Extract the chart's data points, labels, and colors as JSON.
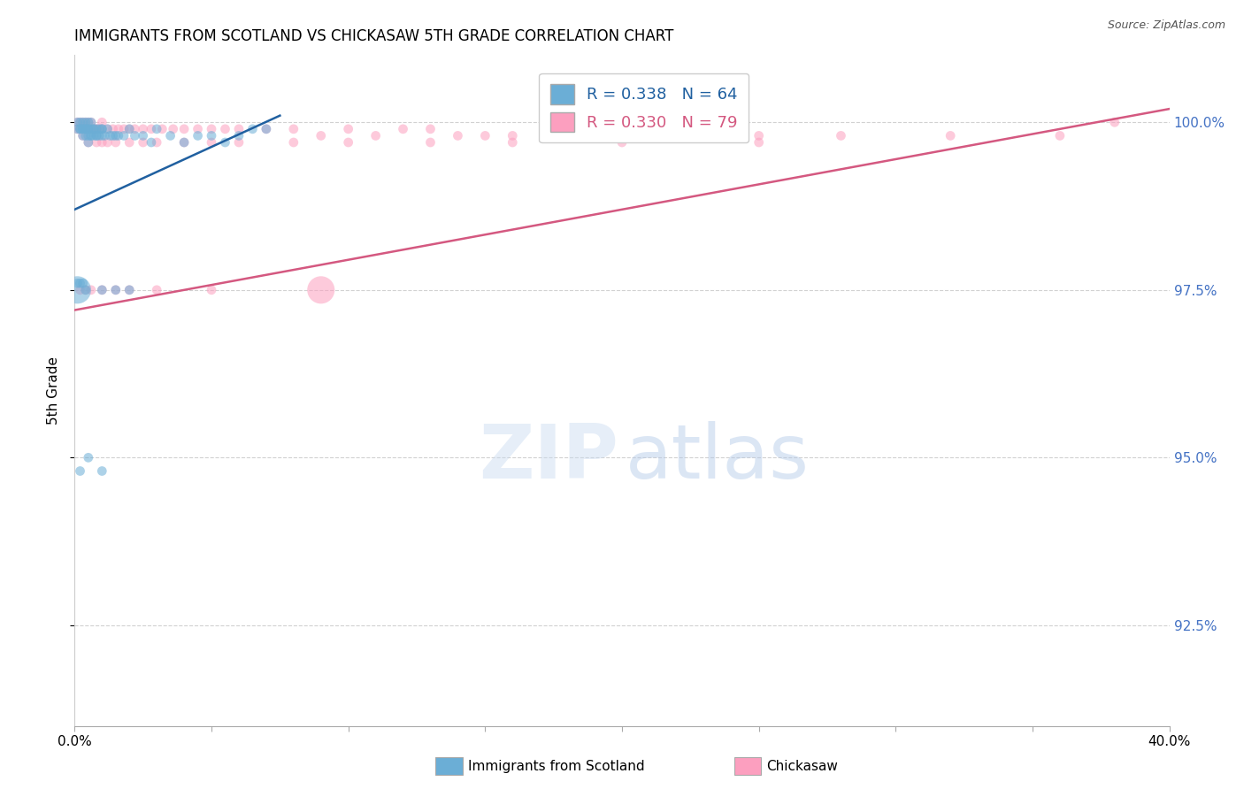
{
  "title": "IMMIGRANTS FROM SCOTLAND VS CHICKASAW 5TH GRADE CORRELATION CHART",
  "source": "Source: ZipAtlas.com",
  "ylabel": "5th Grade",
  "xlim": [
    0.0,
    0.4
  ],
  "ylim": [
    0.91,
    1.01
  ],
  "yticks": [
    0.925,
    0.95,
    0.975,
    1.0
  ],
  "ytick_labels": [
    "92.5%",
    "95.0%",
    "97.5%",
    "100.0%"
  ],
  "xtick_vals": [
    0.0,
    0.05,
    0.1,
    0.15,
    0.2,
    0.25,
    0.3,
    0.35,
    0.4
  ],
  "xtick_labels": [
    "0.0%",
    "",
    "",
    "",
    "",
    "",
    "",
    "",
    "40.0%"
  ],
  "blue_R": 0.338,
  "blue_N": 64,
  "pink_R": 0.33,
  "pink_N": 79,
  "blue_color": "#6baed6",
  "pink_color": "#fc9fbf",
  "blue_line_color": "#2060a0",
  "pink_line_color": "#d45880",
  "legend_label_blue": "Immigrants from Scotland",
  "legend_label_pink": "Chickasaw",
  "watermark_zip": "ZIP",
  "watermark_atlas": "atlas",
  "background_color": "#ffffff",
  "blue_line_x0": 0.0,
  "blue_line_y0": 0.987,
  "blue_line_x1": 0.075,
  "blue_line_y1": 1.001,
  "pink_line_x0": 0.0,
  "pink_line_y0": 0.972,
  "pink_line_x1": 0.4,
  "pink_line_y1": 1.002,
  "blue_scatter_x": [
    0.001,
    0.001,
    0.002,
    0.002,
    0.002,
    0.003,
    0.003,
    0.003,
    0.003,
    0.004,
    0.004,
    0.004,
    0.004,
    0.005,
    0.005,
    0.005,
    0.005,
    0.005,
    0.006,
    0.006,
    0.006,
    0.006,
    0.007,
    0.007,
    0.007,
    0.008,
    0.008,
    0.008,
    0.009,
    0.009,
    0.01,
    0.01,
    0.01,
    0.011,
    0.012,
    0.013,
    0.014,
    0.015,
    0.016,
    0.018,
    0.02,
    0.022,
    0.025,
    0.028,
    0.03,
    0.035,
    0.04,
    0.045,
    0.05,
    0.055,
    0.06,
    0.065,
    0.07,
    0.001,
    0.002,
    0.003,
    0.004,
    0.01,
    0.015,
    0.02,
    0.002,
    0.005,
    0.01,
    0.001
  ],
  "blue_scatter_y": [
    1.0,
    0.999,
    1.0,
    0.999,
    0.999,
    1.0,
    0.999,
    0.999,
    0.998,
    1.0,
    0.999,
    0.999,
    0.998,
    1.0,
    0.999,
    0.999,
    0.998,
    0.997,
    1.0,
    0.999,
    0.998,
    0.998,
    0.999,
    0.999,
    0.998,
    0.999,
    0.998,
    0.998,
    0.999,
    0.998,
    0.999,
    0.999,
    0.998,
    0.998,
    0.999,
    0.998,
    0.998,
    0.998,
    0.998,
    0.998,
    0.999,
    0.998,
    0.998,
    0.997,
    0.999,
    0.998,
    0.997,
    0.998,
    0.998,
    0.997,
    0.998,
    0.999,
    0.999,
    0.976,
    0.976,
    0.976,
    0.975,
    0.975,
    0.975,
    0.975,
    0.948,
    0.95,
    0.948,
    0.975
  ],
  "blue_scatter_s": [
    60,
    60,
    60,
    60,
    60,
    60,
    60,
    60,
    60,
    60,
    60,
    60,
    60,
    60,
    60,
    60,
    60,
    60,
    60,
    60,
    60,
    60,
    60,
    60,
    60,
    60,
    60,
    60,
    60,
    60,
    60,
    60,
    60,
    60,
    60,
    60,
    60,
    60,
    60,
    60,
    60,
    60,
    60,
    60,
    60,
    60,
    60,
    60,
    60,
    60,
    60,
    60,
    60,
    60,
    60,
    60,
    60,
    60,
    60,
    60,
    60,
    60,
    60,
    500
  ],
  "pink_scatter_x": [
    0.001,
    0.001,
    0.002,
    0.002,
    0.003,
    0.003,
    0.004,
    0.004,
    0.005,
    0.005,
    0.006,
    0.006,
    0.007,
    0.007,
    0.008,
    0.008,
    0.009,
    0.01,
    0.01,
    0.012,
    0.014,
    0.016,
    0.018,
    0.02,
    0.022,
    0.025,
    0.028,
    0.032,
    0.036,
    0.04,
    0.045,
    0.05,
    0.055,
    0.06,
    0.07,
    0.08,
    0.09,
    0.1,
    0.11,
    0.12,
    0.13,
    0.14,
    0.15,
    0.16,
    0.18,
    0.2,
    0.22,
    0.25,
    0.28,
    0.32,
    0.36,
    0.38,
    0.003,
    0.005,
    0.008,
    0.01,
    0.012,
    0.015,
    0.02,
    0.025,
    0.03,
    0.04,
    0.05,
    0.06,
    0.08,
    0.1,
    0.13,
    0.16,
    0.2,
    0.25,
    0.002,
    0.004,
    0.006,
    0.01,
    0.015,
    0.02,
    0.03,
    0.05,
    0.09
  ],
  "pink_scatter_y": [
    1.0,
    0.999,
    1.0,
    0.999,
    1.0,
    0.999,
    1.0,
    0.999,
    1.0,
    0.999,
    1.0,
    0.999,
    0.999,
    0.999,
    0.999,
    0.999,
    0.999,
    1.0,
    0.999,
    0.999,
    0.999,
    0.999,
    0.999,
    0.999,
    0.999,
    0.999,
    0.999,
    0.999,
    0.999,
    0.999,
    0.999,
    0.999,
    0.999,
    0.999,
    0.999,
    0.999,
    0.998,
    0.999,
    0.998,
    0.999,
    0.999,
    0.998,
    0.998,
    0.998,
    0.998,
    0.998,
    0.998,
    0.998,
    0.998,
    0.998,
    0.998,
    1.0,
    0.998,
    0.997,
    0.997,
    0.997,
    0.997,
    0.997,
    0.997,
    0.997,
    0.997,
    0.997,
    0.997,
    0.997,
    0.997,
    0.997,
    0.997,
    0.997,
    0.997,
    0.997,
    0.975,
    0.975,
    0.975,
    0.975,
    0.975,
    0.975,
    0.975,
    0.975,
    0.975
  ],
  "pink_scatter_s": [
    60,
    60,
    60,
    60,
    60,
    60,
    60,
    60,
    60,
    60,
    60,
    60,
    60,
    60,
    60,
    60,
    60,
    60,
    60,
    60,
    60,
    60,
    60,
    60,
    60,
    60,
    60,
    60,
    60,
    60,
    60,
    60,
    60,
    60,
    60,
    60,
    60,
    60,
    60,
    60,
    60,
    60,
    60,
    60,
    60,
    60,
    60,
    60,
    60,
    60,
    60,
    60,
    60,
    60,
    60,
    60,
    60,
    60,
    60,
    60,
    60,
    60,
    60,
    60,
    60,
    60,
    60,
    60,
    60,
    60,
    60,
    60,
    60,
    60,
    60,
    60,
    60,
    60,
    500
  ]
}
